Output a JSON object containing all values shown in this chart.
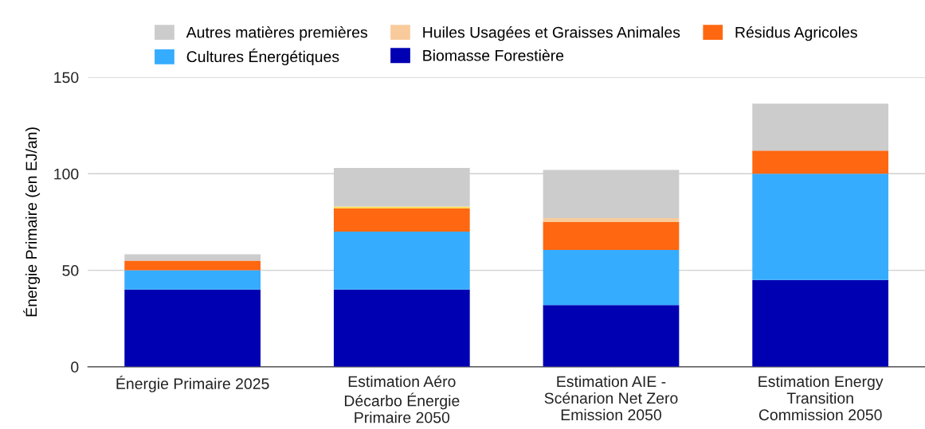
{
  "chart_data": {
    "type": "bar",
    "stacked": true,
    "ylabel": "Énergie Primaire (en EJ/an)",
    "categories": [
      "Énergie Primaire 2025",
      "Estimation Aéro\nDécarbo Énergie\nPrimaire 2050",
      "Estimation AIE -\nScénarion Net Zero\nEmission 2050",
      "Estimation Energy\nTransition\nCommission 2050"
    ],
    "series": [
      {
        "name": "Biomasse Forestière",
        "color": "#0000b3",
        "values": [
          40,
          40,
          32,
          45
        ]
      },
      {
        "name": "Cultures Énergétiques",
        "color": "#36acff",
        "values": [
          10,
          30,
          28.5,
          55
        ]
      },
      {
        "name": "Résidus Agricoles",
        "color": "#ff6711",
        "values": [
          5,
          12,
          14.5,
          12
        ]
      },
      {
        "name": "Huiles Usagées et Graisses Animales",
        "color": "#f9cb9c",
        "colors": [
          "#f9cb9c",
          "#ffd95a",
          "#f9cb9c",
          "#f9cb9c"
        ],
        "values": [
          0,
          1,
          2,
          0
        ]
      },
      {
        "name": "Autres matières premières",
        "color": "#cccccc",
        "values": [
          3.3,
          20,
          25,
          24.3
        ]
      }
    ],
    "ylim": [
      0,
      150
    ],
    "yticks": [
      0,
      50,
      100,
      150
    ],
    "grid": "y",
    "legend": "top"
  }
}
